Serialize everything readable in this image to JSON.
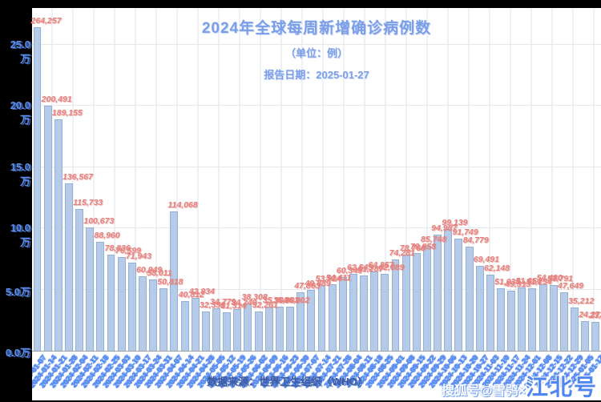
{
  "header": {
    "title": "2024年全球每周新增确诊病例数",
    "subtitle": "（单位：例）",
    "report_date_line": "报告日期：2025-01-27"
  },
  "footer": {
    "source_line": "数据来源：世界卫生组织（WHO）",
    "watermark_prefix": "搜狐号@雪鸮×",
    "watermark_brand": "江北号"
  },
  "y_axis": {
    "tick_labels": [
      "25.0万",
      "20.0万",
      "15.0万",
      "10.0万",
      "5.0万",
      "0.0万"
    ],
    "tick_values": [
      250000,
      200000,
      150000,
      100000,
      50000,
      0
    ]
  },
  "colors": {
    "background": "#000000",
    "plot_background": "#ffffff",
    "bar_fill": "#b5cbe7",
    "bar_edge": "#93b1d6",
    "value_label": "#e4827e",
    "axis_label": "#5b8dee",
    "title": "#7b9ee8",
    "source_text": "#3b5ba6",
    "watermark_brand": "#4f86f0"
  },
  "chart_data": {
    "type": "bar",
    "title": "2024年全球每周新增确诊病例数",
    "subtitle": "（单位：例）",
    "annotation": "报告日期：2025-01-27",
    "xlabel": "",
    "ylabel": "",
    "ylim": [
      0,
      280000
    ],
    "grid": true,
    "legend": false,
    "value_labels_shown": true,
    "x_tick_labels_overlapping_illegible": true,
    "x": [
      "2024-01-07",
      "2024-01-14",
      "2024-01-21",
      "2024-01-28",
      "2024-02-04",
      "2024-02-11",
      "2024-02-18",
      "2024-02-25",
      "2024-03-03",
      "2024-03-10",
      "2024-03-17",
      "2024-03-24",
      "2024-03-31",
      "2024-04-07",
      "2024-04-14",
      "2024-04-21",
      "2024-04-28",
      "2024-05-05",
      "2024-05-12",
      "2024-05-19",
      "2024-05-26",
      "2024-06-02",
      "2024-06-09",
      "2024-06-16",
      "2024-06-23",
      "2024-06-30",
      "2024-07-07",
      "2024-07-14",
      "2024-07-21",
      "2024-07-28",
      "2024-08-04",
      "2024-08-11",
      "2024-08-18",
      "2024-08-25",
      "2024-09-01",
      "2024-09-08",
      "2024-09-15",
      "2024-09-22",
      "2024-09-29",
      "2024-10-06",
      "2024-10-13",
      "2024-10-20",
      "2024-10-27",
      "2024-11-03",
      "2024-11-10",
      "2024-11-17",
      "2024-11-24",
      "2024-12-01",
      "2024-12-08",
      "2024-12-15",
      "2024-12-22",
      "2024-12-29",
      "2025-01-05",
      "2025-01-12"
    ],
    "values": [
      264257,
      200491,
      189155,
      136567,
      115733,
      100673,
      88960,
      78836,
      76599,
      71943,
      60949,
      58011,
      50818,
      114068,
      40812,
      42934,
      32356,
      34779,
      31314,
      34240,
      38308,
      32261,
      35904,
      35803,
      36002,
      47863,
      49889,
      53924,
      54411,
      60343,
      62545,
      61287,
      64857,
      62889,
      74281,
      78760,
      79858,
      85748,
      94987,
      99139,
      91749,
      84779,
      69491,
      62148,
      51038,
      49313,
      51654,
      51254,
      54480,
      53791,
      47649,
      35212,
      24272,
      23265
    ]
  }
}
